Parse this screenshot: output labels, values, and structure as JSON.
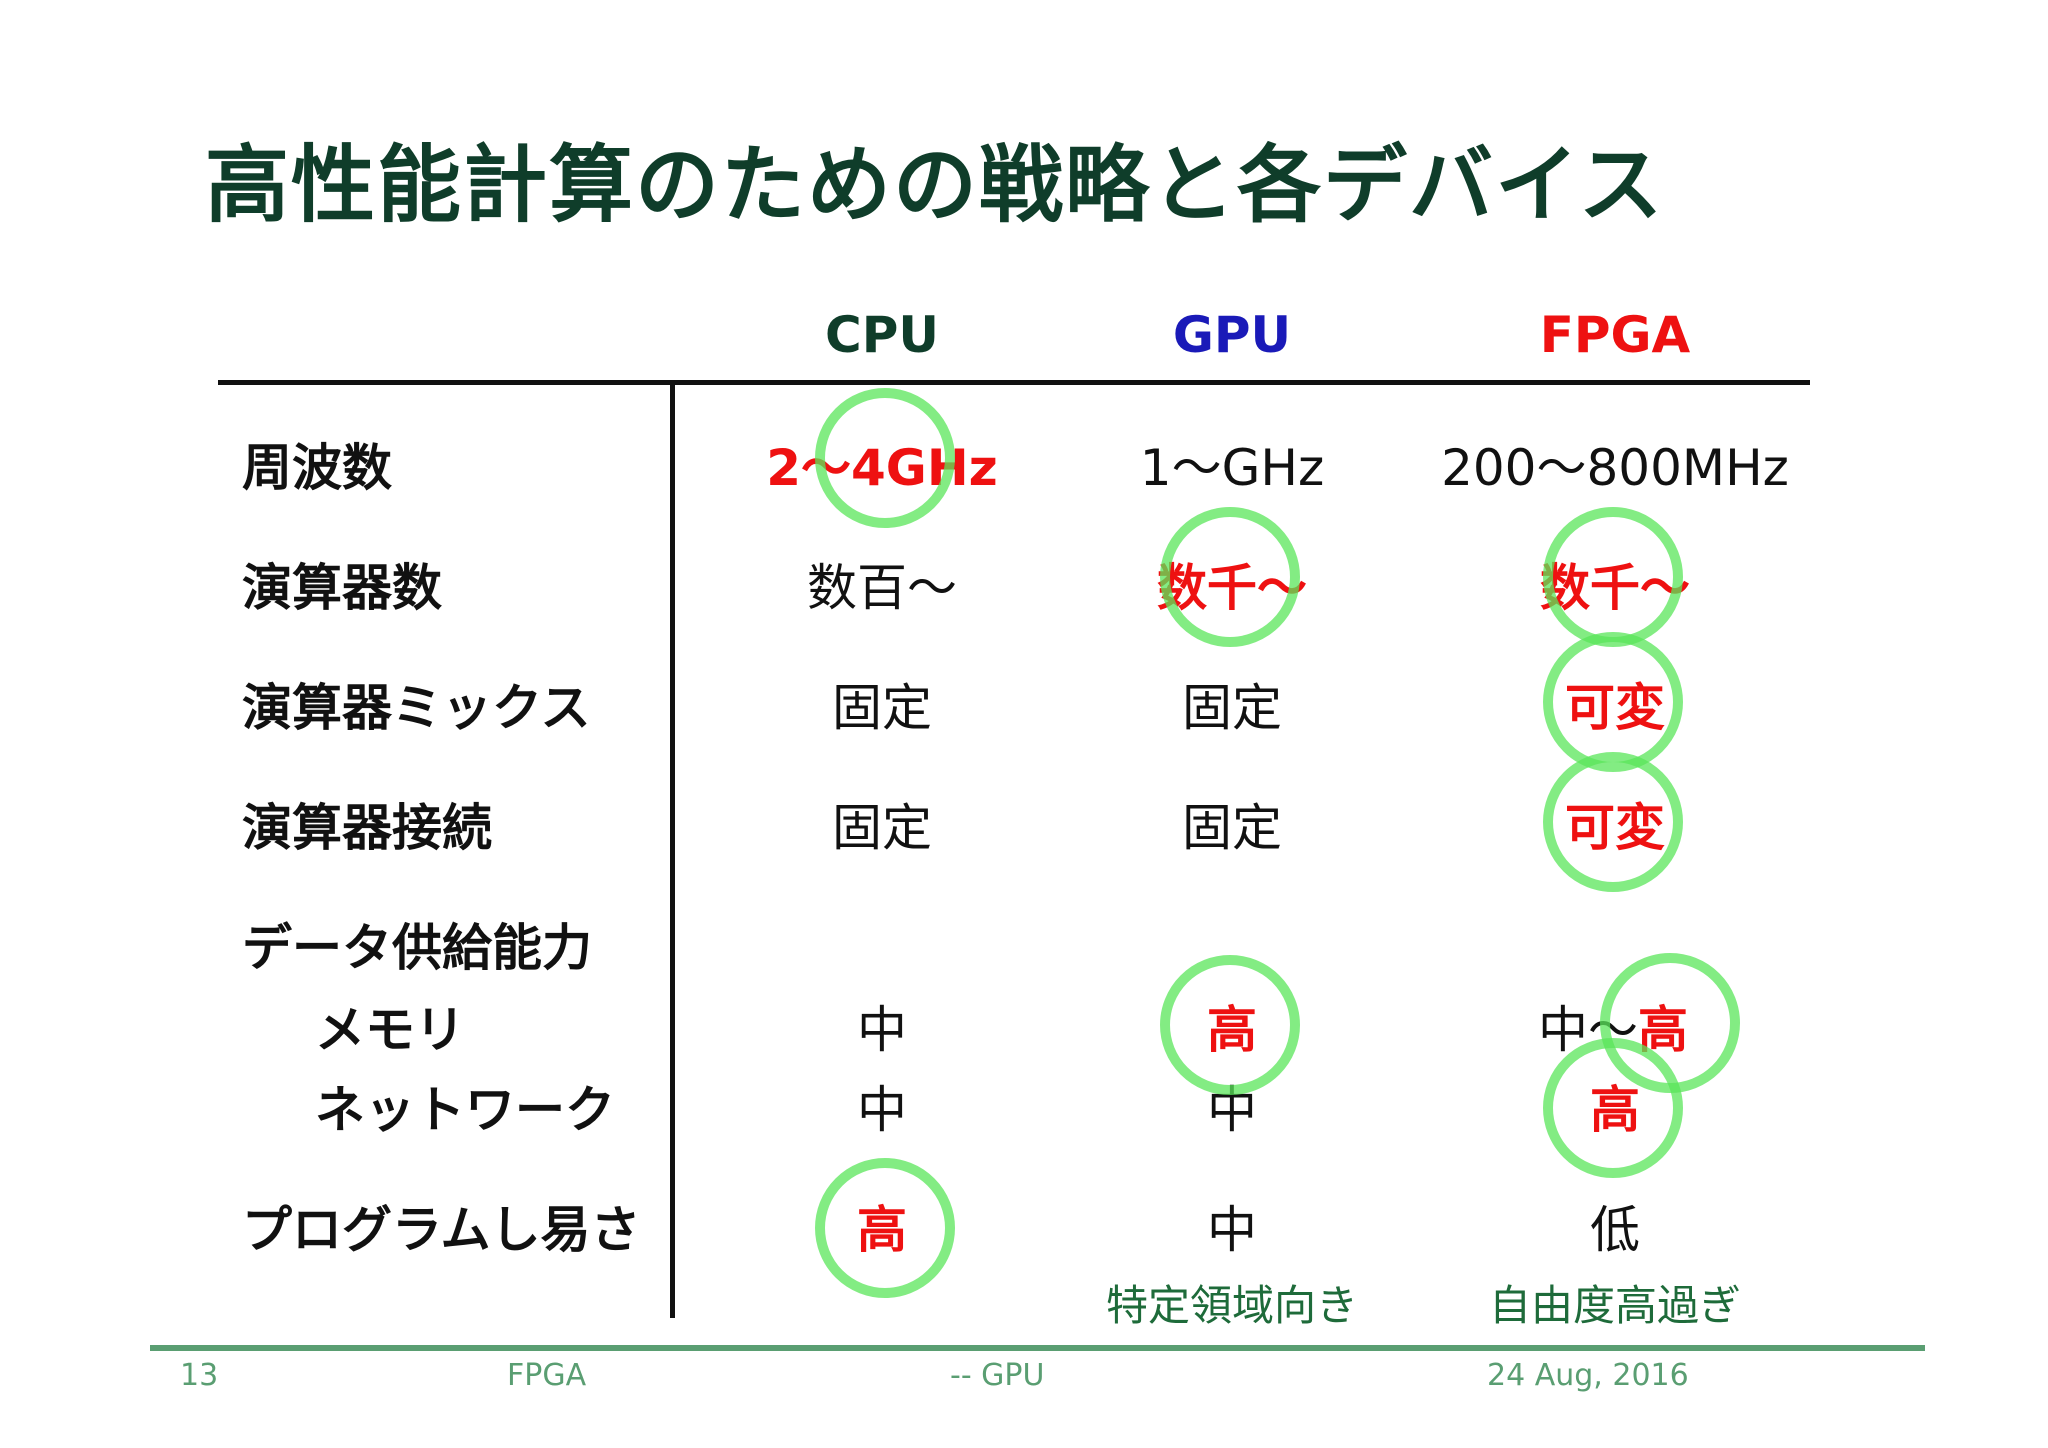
{
  "title": "高性能計算のための戦略と各デバイス",
  "columns": {
    "cpu": {
      "label": "CPU",
      "color": "#0f3d2a"
    },
    "gpu": {
      "label": "GPU",
      "color": "#1a1ab8"
    },
    "fpga": {
      "label": "FPGA",
      "color": "#ee1111"
    }
  },
  "rows": {
    "freq": {
      "label": "周波数",
      "cpu": "2～4GHz",
      "gpu": "1～GHz",
      "fpga": "200～800MHz"
    },
    "units": {
      "label": "演算器数",
      "cpu": "数百～",
      "gpu": "数千～",
      "fpga": "数千～"
    },
    "mix": {
      "label": "演算器ミックス",
      "cpu": "固定",
      "gpu": "固定",
      "fpga": "可変"
    },
    "conn": {
      "label": "演算器接続",
      "cpu": "固定",
      "gpu": "固定",
      "fpga": "可変"
    },
    "supply": {
      "label": "データ供給能力"
    },
    "memory": {
      "label": "メモリ",
      "cpu": "中",
      "gpu": "高",
      "fpga_a": "中～",
      "fpga_b": "高"
    },
    "network": {
      "label": "ネットワーク",
      "cpu": "中",
      "gpu": "中",
      "fpga": "高"
    },
    "prog": {
      "label": "プログラムし易さ",
      "cpu": "高",
      "gpu": "中",
      "fpga": "低",
      "gpu_note": "特定領域向き",
      "fpga_note": "自由度高過ぎ"
    }
  },
  "footer": {
    "page": "13",
    "left": "FPGA",
    "center": "-- GPU",
    "date": "24 Aug, 2016"
  }
}
